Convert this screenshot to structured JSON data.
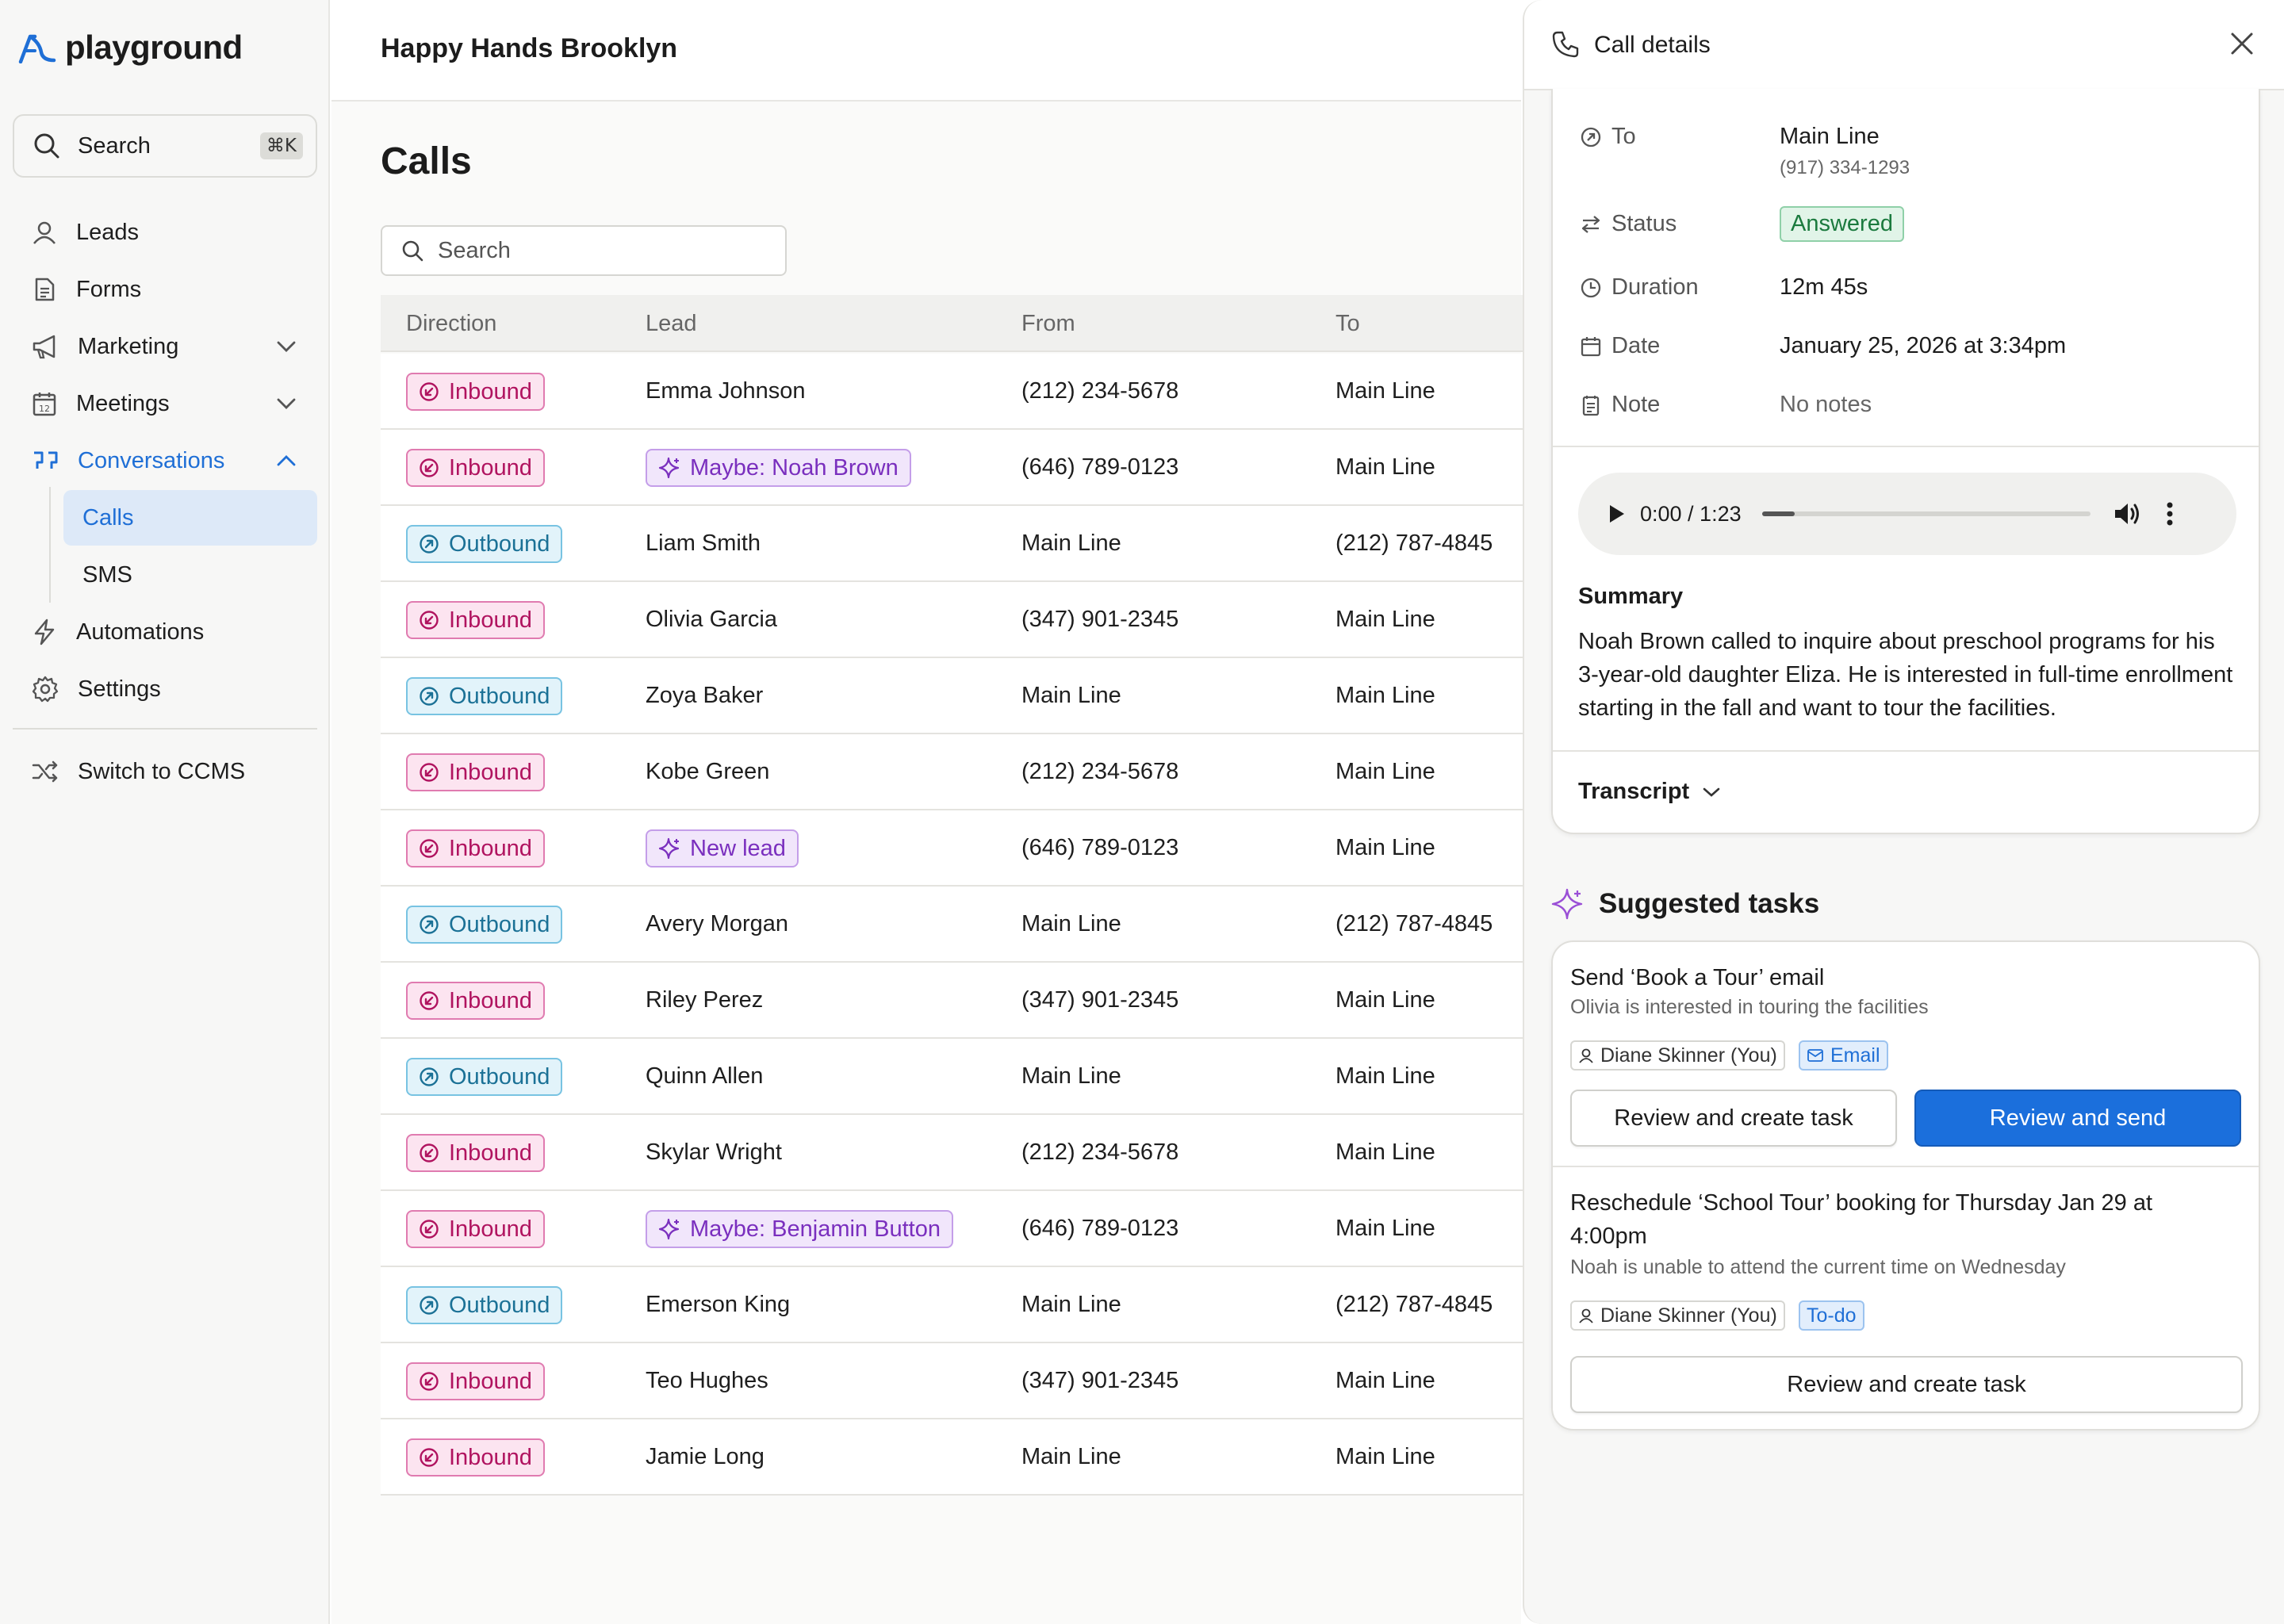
{
  "app": {
    "name": "playground"
  },
  "sidebar": {
    "search_label": "Search",
    "search_shortcut": "⌘K",
    "items": [
      {
        "label": "Leads",
        "icon": "user-icon"
      },
      {
        "label": "Forms",
        "icon": "document-icon"
      },
      {
        "label": "Marketing",
        "icon": "megaphone-icon",
        "chevron": "down"
      },
      {
        "label": "Meetings",
        "icon": "calendar-icon",
        "chevron": "down"
      },
      {
        "label": "Conversations",
        "icon": "quote-icon",
        "chevron": "up",
        "active": true
      },
      {
        "label": "Automations",
        "icon": "lightning-icon"
      },
      {
        "label": "Settings",
        "icon": "gear-icon"
      }
    ],
    "sub_items": [
      {
        "label": "Calls",
        "active": true
      },
      {
        "label": "SMS"
      }
    ],
    "switch_label": "Switch to CCMS",
    "accent_color": "#1f6fd6"
  },
  "header": {
    "org_name": "Happy Hands Brooklyn"
  },
  "page": {
    "title": "Calls",
    "search_placeholder": "Search",
    "columns": [
      "Direction",
      "Lead",
      "From",
      "To"
    ],
    "rows": [
      {
        "direction": "Inbound",
        "lead": "Emma Johnson",
        "from": "(212) 234-5678",
        "to": "Main Line"
      },
      {
        "direction": "Inbound",
        "lead": "Maybe: Noah Brown",
        "lead_tag": true,
        "from": "(646) 789-0123",
        "to": "Main Line"
      },
      {
        "direction": "Outbound",
        "lead": "Liam Smith",
        "from": "Main Line",
        "to": "(212) 787-4845"
      },
      {
        "direction": "Inbound",
        "lead": "Olivia Garcia",
        "from": "(347) 901-2345",
        "to": "Main Line"
      },
      {
        "direction": "Outbound",
        "lead": "Zoya Baker",
        "from": "Main Line",
        "to": "Main Line"
      },
      {
        "direction": "Inbound",
        "lead": "Kobe Green",
        "from": "(212) 234-5678",
        "to": "Main Line"
      },
      {
        "direction": "Inbound",
        "lead": "New lead",
        "lead_tag": true,
        "from": "(646) 789-0123",
        "to": "Main Line"
      },
      {
        "direction": "Outbound",
        "lead": "Avery Morgan",
        "from": "Main Line",
        "to": "(212) 787-4845"
      },
      {
        "direction": "Inbound",
        "lead": "Riley Perez",
        "from": "(347) 901-2345",
        "to": "Main Line"
      },
      {
        "direction": "Outbound",
        "lead": "Quinn Allen",
        "from": "Main Line",
        "to": "Main Line"
      },
      {
        "direction": "Inbound",
        "lead": "Skylar Wright",
        "from": "(212) 234-5678",
        "to": "Main Line"
      },
      {
        "direction": "Inbound",
        "lead": "Maybe: Benjamin Button",
        "lead_tag": true,
        "from": "(646) 789-0123",
        "to": "Main Line"
      },
      {
        "direction": "Outbound",
        "lead": "Emerson King",
        "from": "Main Line",
        "to": "(212) 787-4845"
      },
      {
        "direction": "Inbound",
        "lead": "Teo Hughes",
        "from": "(347) 901-2345",
        "to": "Main Line"
      },
      {
        "direction": "Inbound",
        "lead": "Jamie Long",
        "from": "Main Line",
        "to": "Main Line"
      }
    ],
    "colors": {
      "inbound": "#b0135f",
      "outbound": "#1b7196",
      "lead_tag": "#7a2fbe"
    }
  },
  "call_details": {
    "title": "Call details",
    "to_label": "To",
    "to_value": "Main Line",
    "to_number": "(917) 334-1293",
    "status_label": "Status",
    "status_value": "Answered",
    "duration_label": "Duration",
    "duration_value": "12m 45s",
    "date_label": "Date",
    "date_value": "January 25, 2026 at 3:34pm",
    "note_label": "Note",
    "note_value": "No notes",
    "audio": {
      "time": "0:00 / 1:23",
      "progress": 0.1
    },
    "summary_heading": "Summary",
    "summary_text": "Noah Brown called to inquire about preschool programs for his 3-year-old daughter Eliza. He is interested in full-time enrollment starting in the fall and want to tour the facilities.",
    "transcript_label": "Transcript"
  },
  "suggested_tasks": {
    "heading": "Suggested tasks",
    "tasks": [
      {
        "title": "Send ‘Book a Tour’ email",
        "description": "Olivia is interested in touring the facilities",
        "assignee": "Diane Skinner (You)",
        "type": "Email",
        "secondary_button": "Review and create task",
        "primary_button": "Review and send"
      },
      {
        "title": "Reschedule ‘School Tour’ booking for Thursday Jan 29 at 4:00pm",
        "description": "Noah is unable to attend the current time on Wednesday",
        "assignee": "Diane Skinner (You)",
        "type": "To-do",
        "secondary_button": "Review and create task"
      }
    ],
    "primary_color": "#1b6fdc"
  }
}
